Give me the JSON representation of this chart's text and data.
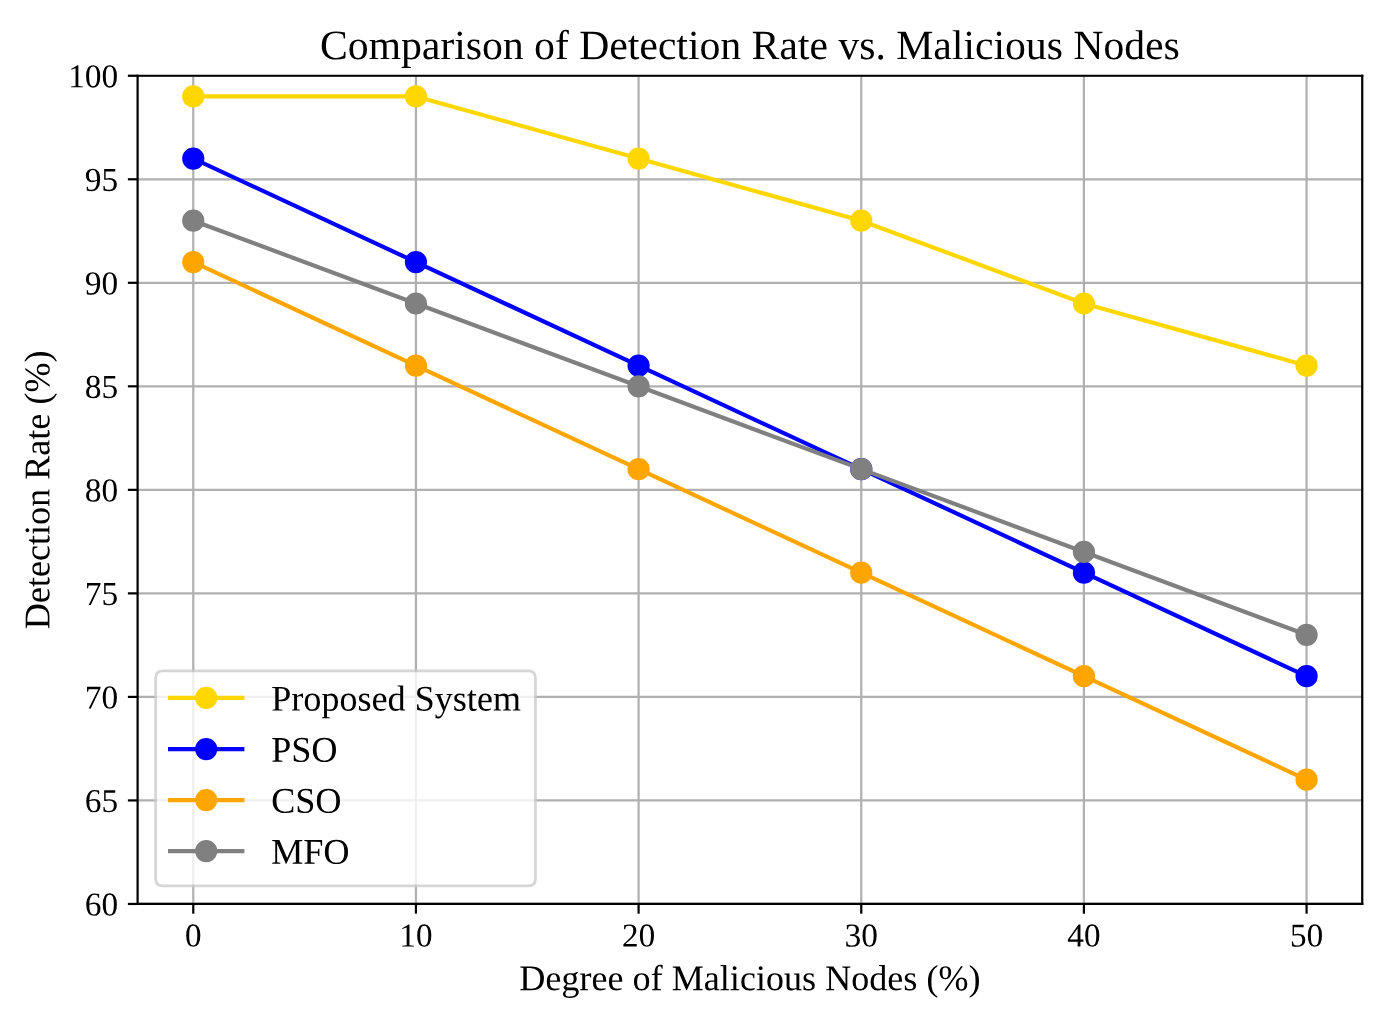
{
  "chart_data": {
    "type": "line",
    "title": "Comparison of Detection Rate vs. Malicious Nodes",
    "xlabel": "Degree of Malicious Nodes (%)",
    "ylabel": "Detection Rate (%)",
    "x": [
      0,
      10,
      20,
      30,
      40,
      50
    ],
    "series": [
      {
        "name": "Proposed System",
        "color": "#ffd700",
        "values": [
          99,
          99,
          96,
          93,
          89,
          86
        ]
      },
      {
        "name": "PSO",
        "color": "#0000ff",
        "values": [
          96,
          91,
          86,
          81,
          76,
          71
        ]
      },
      {
        "name": "CSO",
        "color": "#ffa500",
        "values": [
          91,
          86,
          81,
          76,
          71,
          66
        ]
      },
      {
        "name": "MFO",
        "color": "#808080",
        "values": [
          93,
          89,
          85,
          81,
          77,
          73
        ]
      }
    ],
    "xlim": [
      -2.5,
      52.5
    ],
    "xticks": [
      0,
      10,
      20,
      30,
      40,
      50
    ],
    "ylim": [
      60,
      100
    ],
    "yticks": [
      60,
      65,
      70,
      75,
      80,
      85,
      90,
      95,
      100
    ],
    "grid": true,
    "legend": "bottom left",
    "marker": "circle",
    "line_style": "solid"
  }
}
